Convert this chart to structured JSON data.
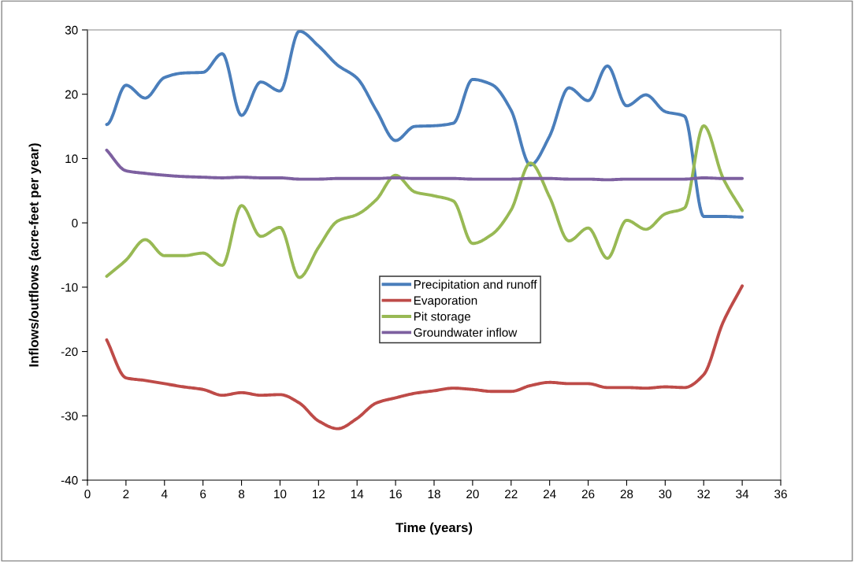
{
  "chart_data": {
    "type": "line",
    "xlabel": "Time (years)",
    "ylabel": "Inflows/outflows (acre-feet per year)",
    "x": [
      1,
      2,
      3,
      4,
      5,
      6,
      7,
      8,
      9,
      10,
      11,
      12,
      13,
      14,
      15,
      16,
      17,
      18,
      19,
      20,
      21,
      22,
      23,
      24,
      25,
      26,
      27,
      28,
      29,
      30,
      31,
      32,
      33,
      34
    ],
    "series": [
      {
        "name": "Precipitation and runoff",
        "color": "#4a7ebb",
        "values": [
          15.3,
          21.4,
          19.4,
          22.6,
          23.3,
          23.4,
          26.3,
          16.7,
          21.9,
          20.5,
          29.8,
          27.5,
          24.5,
          22.5,
          17.5,
          12.8,
          15.0,
          15.1,
          15.5,
          22.3,
          21.5,
          17.5,
          9.0,
          13.5,
          21.0,
          19.0,
          24.4,
          18.2,
          19.9,
          17.3,
          16.6,
          1.0,
          1.0,
          0.9
        ]
      },
      {
        "name": "Evaporation",
        "color": "#be4b48",
        "values": [
          -18.2,
          -24.1,
          -24.5,
          -25.0,
          -25.5,
          -25.9,
          -26.8,
          -26.4,
          -26.8,
          -26.7,
          -28.0,
          -30.8,
          -32.0,
          -30.4,
          -28.0,
          -27.2,
          -26.5,
          -26.1,
          -25.7,
          -25.9,
          -26.2,
          -26.2,
          -25.3,
          -24.8,
          -25.0,
          -25.0,
          -25.6,
          -25.6,
          -25.7,
          -25.5,
          -25.6,
          -23.6,
          -15.5,
          -9.8
        ]
      },
      {
        "name": "Pit storage",
        "color": "#98b954",
        "values": [
          -8.3,
          -5.8,
          -2.6,
          -5.1,
          -5.1,
          -4.7,
          -6.6,
          2.7,
          -2.1,
          -0.7,
          -8.5,
          -3.8,
          0.3,
          1.3,
          3.6,
          7.4,
          4.8,
          4.2,
          3.4,
          -3.2,
          -1.8,
          2.0,
          9.3,
          4.0,
          -2.8,
          -0.8,
          -5.5,
          0.4,
          -1.0,
          1.4,
          2.3,
          15.1,
          7.0,
          1.9
        ]
      },
      {
        "name": "Groundwater inflow",
        "color": "#7d60a0",
        "values": [
          11.3,
          8.1,
          7.7,
          7.4,
          7.2,
          7.1,
          7.0,
          7.1,
          7.0,
          7.0,
          6.8,
          6.8,
          6.9,
          6.9,
          6.9,
          7.0,
          6.9,
          6.9,
          6.9,
          6.8,
          6.8,
          6.8,
          6.9,
          6.9,
          6.8,
          6.8,
          6.7,
          6.8,
          6.8,
          6.8,
          6.8,
          7.0,
          6.9,
          6.9
        ]
      }
    ],
    "xlim": [
      0,
      36
    ],
    "xticks": [
      0,
      2,
      4,
      6,
      8,
      10,
      12,
      14,
      16,
      18,
      20,
      22,
      24,
      26,
      28,
      30,
      32,
      34,
      36
    ],
    "ylim": [
      -40,
      30
    ],
    "yticks": [
      -40,
      -30,
      -20,
      -10,
      0,
      10,
      20,
      30
    ],
    "grid": false,
    "legend": "center",
    "marker": "none",
    "line_style": "solid"
  }
}
